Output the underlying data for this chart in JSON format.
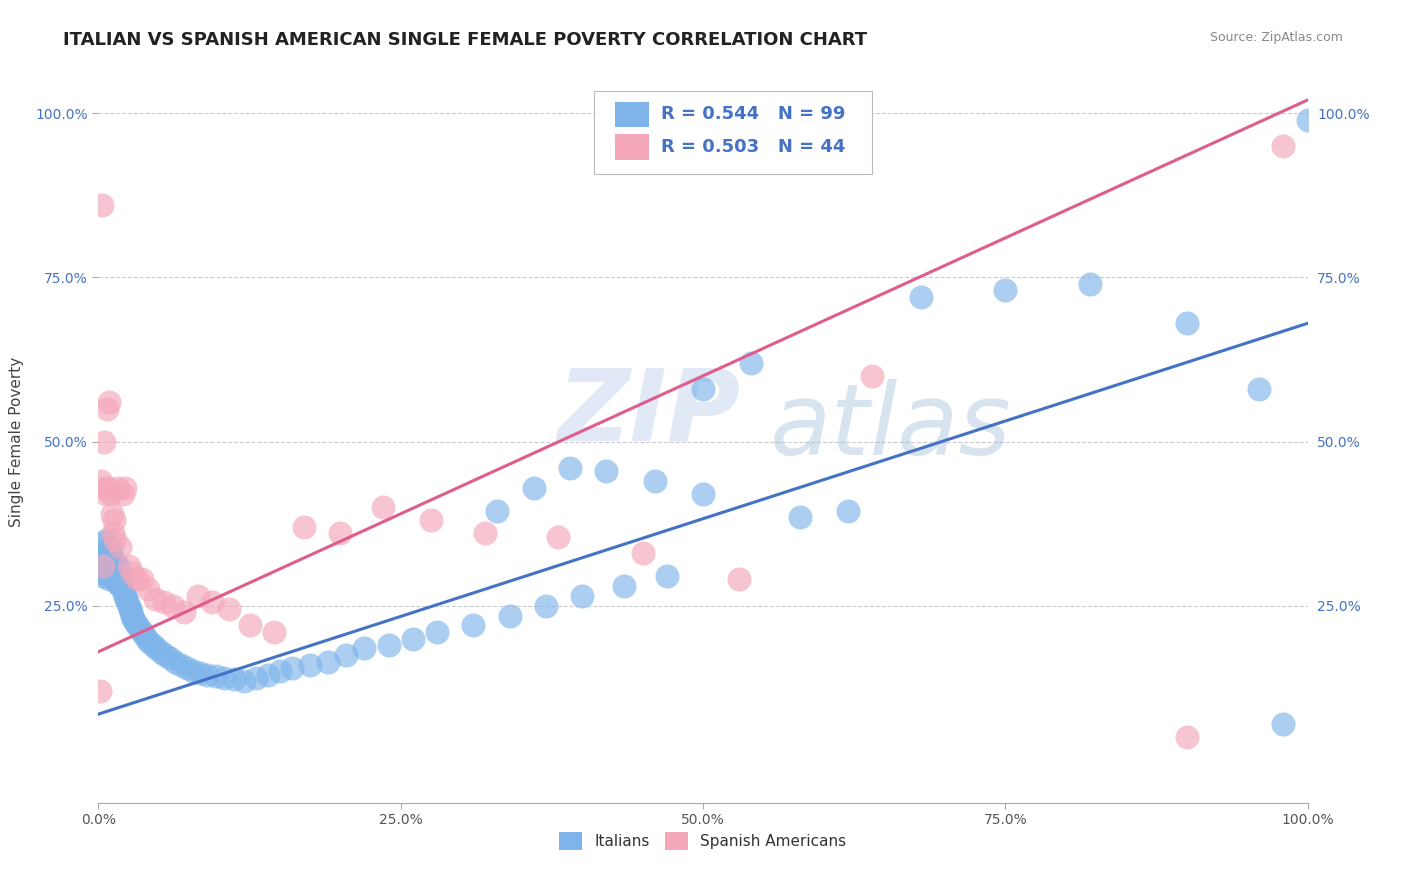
{
  "title": "ITALIAN VS SPANISH AMERICAN SINGLE FEMALE POVERTY CORRELATION CHART",
  "source": "Source: ZipAtlas.com",
  "ylabel": "Single Female Poverty",
  "xlabel": "",
  "watermark_zip": "ZIP",
  "watermark_atlas": "atlas",
  "xlim": [
    0.0,
    1.0
  ],
  "ylim": [
    -0.05,
    1.05
  ],
  "xtick_vals": [
    0.0,
    0.25,
    0.5,
    0.75,
    1.0
  ],
  "xtick_labels": [
    "0.0%",
    "25.0%",
    "50.0%",
    "75.0%",
    "100.0%"
  ],
  "ytick_vals": [
    0.25,
    0.5,
    0.75,
    1.0
  ],
  "ytick_labels": [
    "25.0%",
    "50.0%",
    "75.0%",
    "100.0%"
  ],
  "legend_italian_R": "0.544",
  "legend_italian_N": "99",
  "legend_spanish_R": "0.503",
  "legend_spanish_N": "44",
  "italian_color": "#7EB4EA",
  "spanish_color": "#F4A7B9",
  "italian_line_color": "#4472C4",
  "spanish_line_color": "#E05C8C",
  "background_color": "#FFFFFF",
  "grid_color": "#CCCCCC",
  "title_fontsize": 13,
  "label_fontsize": 11,
  "tick_fontsize": 10,
  "italians_x": [
    0.001,
    0.002,
    0.003,
    0.004,
    0.005,
    0.005,
    0.006,
    0.006,
    0.007,
    0.007,
    0.008,
    0.008,
    0.009,
    0.009,
    0.01,
    0.01,
    0.011,
    0.011,
    0.012,
    0.012,
    0.013,
    0.013,
    0.014,
    0.014,
    0.015,
    0.015,
    0.016,
    0.016,
    0.017,
    0.017,
    0.018,
    0.018,
    0.019,
    0.02,
    0.021,
    0.022,
    0.023,
    0.024,
    0.025,
    0.026,
    0.027,
    0.028,
    0.029,
    0.03,
    0.032,
    0.034,
    0.036,
    0.038,
    0.04,
    0.042,
    0.045,
    0.048,
    0.052,
    0.055,
    0.059,
    0.063,
    0.068,
    0.073,
    0.078,
    0.084,
    0.09,
    0.097,
    0.104,
    0.112,
    0.12,
    0.13,
    0.14,
    0.15,
    0.16,
    0.175,
    0.19,
    0.205,
    0.22,
    0.24,
    0.26,
    0.28,
    0.31,
    0.34,
    0.37,
    0.4,
    0.435,
    0.47,
    0.5,
    0.54,
    0.58,
    0.62,
    0.5,
    0.46,
    0.42,
    0.39,
    0.36,
    0.33,
    0.68,
    0.75,
    0.82,
    0.9,
    0.96,
    0.98,
    1.0
  ],
  "italians_y": [
    0.33,
    0.31,
    0.3,
    0.295,
    0.33,
    0.345,
    0.315,
    0.35,
    0.3,
    0.32,
    0.31,
    0.335,
    0.29,
    0.315,
    0.305,
    0.34,
    0.31,
    0.325,
    0.295,
    0.32,
    0.29,
    0.31,
    0.295,
    0.315,
    0.285,
    0.3,
    0.295,
    0.31,
    0.285,
    0.295,
    0.28,
    0.3,
    0.285,
    0.275,
    0.27,
    0.265,
    0.26,
    0.255,
    0.25,
    0.245,
    0.24,
    0.235,
    0.23,
    0.225,
    0.22,
    0.215,
    0.21,
    0.205,
    0.2,
    0.195,
    0.19,
    0.185,
    0.18,
    0.175,
    0.17,
    0.165,
    0.16,
    0.155,
    0.15,
    0.148,
    0.145,
    0.143,
    0.14,
    0.138,
    0.135,
    0.14,
    0.145,
    0.15,
    0.155,
    0.16,
    0.165,
    0.175,
    0.185,
    0.19,
    0.2,
    0.21,
    0.22,
    0.235,
    0.25,
    0.265,
    0.28,
    0.295,
    0.58,
    0.62,
    0.385,
    0.395,
    0.42,
    0.44,
    0.455,
    0.46,
    0.43,
    0.395,
    0.72,
    0.73,
    0.74,
    0.68,
    0.58,
    0.07,
    0.99
  ],
  "spanish_x": [
    0.001,
    0.002,
    0.003,
    0.004,
    0.005,
    0.005,
    0.006,
    0.007,
    0.008,
    0.009,
    0.01,
    0.011,
    0.012,
    0.013,
    0.014,
    0.016,
    0.018,
    0.02,
    0.022,
    0.025,
    0.028,
    0.032,
    0.036,
    0.041,
    0.047,
    0.054,
    0.062,
    0.071,
    0.082,
    0.094,
    0.108,
    0.125,
    0.145,
    0.17,
    0.2,
    0.235,
    0.275,
    0.32,
    0.38,
    0.45,
    0.53,
    0.64,
    0.9,
    0.98
  ],
  "spanish_y": [
    0.12,
    0.44,
    0.86,
    0.31,
    0.5,
    0.43,
    0.42,
    0.55,
    0.43,
    0.56,
    0.42,
    0.39,
    0.36,
    0.38,
    0.35,
    0.43,
    0.34,
    0.42,
    0.43,
    0.31,
    0.3,
    0.29,
    0.29,
    0.275,
    0.26,
    0.255,
    0.25,
    0.24,
    0.265,
    0.255,
    0.245,
    0.22,
    0.21,
    0.37,
    0.36,
    0.4,
    0.38,
    0.36,
    0.355,
    0.33,
    0.29,
    0.6,
    0.05,
    0.95
  ],
  "italian_line_x0": 0.0,
  "italian_line_y0": 0.085,
  "italian_line_x1": 1.0,
  "italian_line_y1": 0.68,
  "spanish_line_x0": 0.0,
  "spanish_line_y0": 0.18,
  "spanish_line_x1": 1.0,
  "spanish_line_y1": 1.02
}
